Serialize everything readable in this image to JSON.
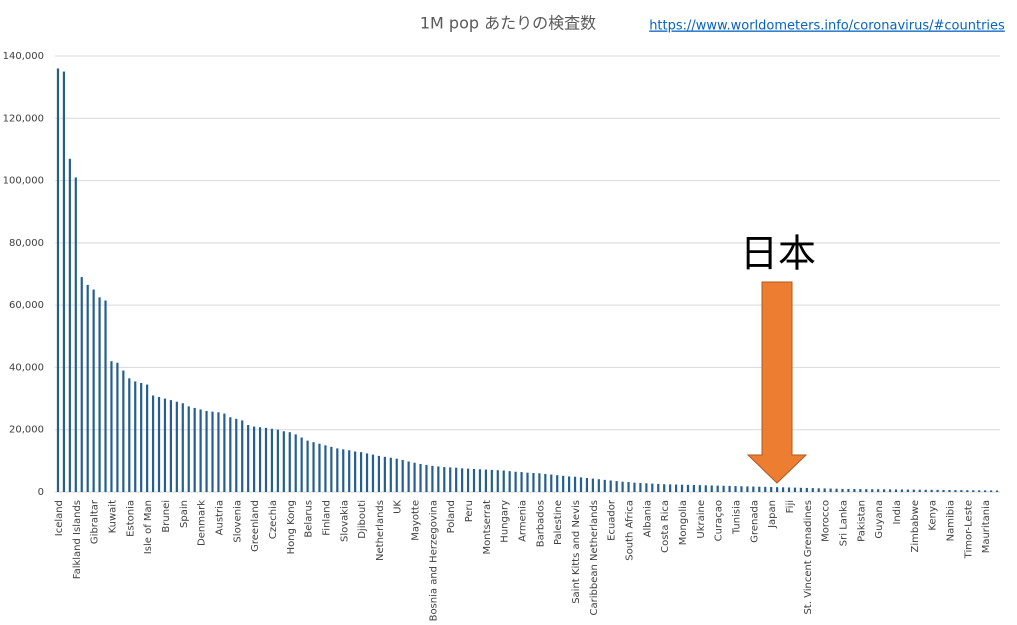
{
  "chart_data": {
    "type": "bar",
    "title": "1M pop あたりの検査数",
    "source_link": "https://www.worldometers.info/coronavirus/#countries",
    "annotation": "日本",
    "color": "#255e91",
    "grid": true,
    "ylim": [
      0,
      140000
    ],
    "yticks": [
      0,
      {
        "value": 20000,
        "label": "20,000"
      },
      {
        "value": 40000,
        "label": "40,000"
      },
      {
        "value": 60000,
        "label": "60,000"
      },
      {
        "value": 80000,
        "label": "80,000"
      },
      {
        "value": 100000,
        "label": "100,000"
      },
      {
        "value": 120000,
        "label": "120,000"
      },
      {
        "value": 140000,
        "label": "140,000"
      }
    ],
    "categories": [
      "Iceland",
      null,
      null,
      "Falkland Islands",
      null,
      null,
      "Gibraltar",
      null,
      null,
      "Kuwait",
      null,
      null,
      "Estonia",
      null,
      null,
      "Isle of Man",
      null,
      null,
      "Brunei",
      null,
      null,
      "Spain",
      null,
      null,
      "Denmark",
      null,
      null,
      "Austria",
      null,
      null,
      "Slovenia",
      null,
      null,
      "Greenland",
      null,
      null,
      "Czechia",
      null,
      null,
      "Hong Kong",
      null,
      null,
      "Belarus",
      null,
      null,
      "Finland",
      null,
      null,
      "Slovakia",
      null,
      null,
      "Djibouti",
      null,
      null,
      "Netherlands",
      null,
      null,
      "UK",
      null,
      null,
      "Mayotte",
      null,
      null,
      "Bosnia and Herzegovina",
      null,
      null,
      "Poland",
      null,
      null,
      "Peru",
      null,
      null,
      "Montserrat",
      null,
      null,
      "Hungary",
      null,
      null,
      "Armenia",
      null,
      null,
      "Barbados",
      null,
      null,
      "Palestine",
      null,
      null,
      "Saint Kitts and Nevis",
      null,
      null,
      "Caribbean Netherlands",
      null,
      null,
      "Ecuador",
      null,
      null,
      "South Africa",
      null,
      null,
      "Albania",
      null,
      null,
      "Costa Rica",
      null,
      null,
      "Mongolia",
      null,
      null,
      "Ukraine",
      null,
      null,
      "Curaçao",
      null,
      null,
      "Tunisia",
      null,
      null,
      "Grenada",
      null,
      null,
      "Japan",
      null,
      null,
      "Fiji",
      null,
      null,
      "St. Vincent Grenadines",
      null,
      null,
      "Morocco",
      null,
      null,
      "Sri Lanka",
      null,
      null,
      "Pakistan",
      null,
      null,
      "Guyana",
      null,
      null,
      "India",
      null,
      null,
      "Zimbabwe",
      null,
      null,
      "Kenya",
      null,
      null,
      "Namibia",
      null,
      null,
      "Timor-Leste",
      null,
      null,
      "Mauritania",
      null,
      null
    ],
    "values": [
      136000,
      135000,
      107000,
      101000,
      69000,
      66500,
      65000,
      62500,
      61500,
      42000,
      41500,
      39000,
      36500,
      35500,
      35000,
      34500,
      31000,
      30500,
      30000,
      29500,
      29000,
      28500,
      27500,
      27000,
      26500,
      26000,
      25800,
      25600,
      25200,
      24000,
      23500,
      23000,
      21500,
      21000,
      20800,
      20600,
      20300,
      20000,
      19500,
      19200,
      18500,
      17500,
      16500,
      16000,
      15500,
      15000,
      14500,
      14000,
      13700,
      13400,
      13000,
      12800,
      12400,
      12000,
      11600,
      11300,
      11000,
      10700,
      10300,
      9800,
      9400,
      9000,
      8700,
      8400,
      8200,
      8000,
      7900,
      7800,
      7600,
      7500,
      7400,
      7300,
      7200,
      7100,
      7000,
      6900,
      6700,
      6500,
      6400,
      6200,
      6100,
      6000,
      5800,
      5600,
      5400,
      5200,
      5000,
      4900,
      4700,
      4500,
      4300,
      4100,
      3900,
      3700,
      3500,
      3300,
      3200,
      3000,
      2900,
      2800,
      2700,
      2600,
      2500,
      2450,
      2400,
      2350,
      2300,
      2250,
      2200,
      2150,
      2100,
      2050,
      2000,
      1950,
      1900,
      1850,
      1800,
      1750,
      1700,
      1650,
      1600,
      1550,
      1500,
      1450,
      1400,
      1350,
      1300,
      1250,
      1200,
      1150,
      1100,
      1050,
      1000,
      980,
      960,
      940,
      920,
      900,
      880,
      860,
      840,
      820,
      800,
      780,
      760,
      740,
      720,
      700,
      680,
      660,
      640,
      620,
      600,
      580,
      560,
      540,
      520,
      500,
      480
    ]
  }
}
